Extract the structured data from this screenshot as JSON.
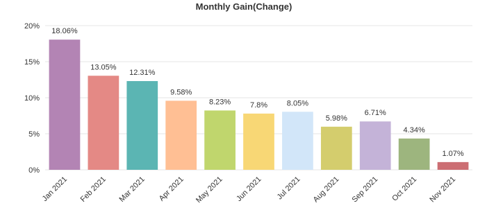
{
  "chart_data": {
    "type": "bar",
    "title": "Monthly Gain(Change)",
    "categories": [
      "Jan 2021",
      "Feb 2021",
      "Mar 2021",
      "Apr 2021",
      "May 2021",
      "Jun 2021",
      "Jul 2021",
      "Aug 2021",
      "Sep 2021",
      "Oct 2021",
      "Nov 2021"
    ],
    "values": [
      18.06,
      13.05,
      12.31,
      9.58,
      8.23,
      7.8,
      8.05,
      5.98,
      6.71,
      4.34,
      1.07
    ],
    "value_labels": [
      "18.06%",
      "13.05%",
      "12.31%",
      "9.58%",
      "8.23%",
      "7.8%",
      "8.05%",
      "5.98%",
      "6.71%",
      "4.34%",
      "1.07%"
    ],
    "colors": [
      "#b384b4",
      "#e48985",
      "#5bb5b3",
      "#ffbf94",
      "#c0d66d",
      "#f8d775",
      "#d2e6f9",
      "#d4cd6d",
      "#c4b3d8",
      "#9db57e",
      "#cc6e73"
    ],
    "ylim": [
      0,
      20
    ],
    "yticks": [
      {
        "value": 0,
        "label": "0%"
      },
      {
        "value": 5,
        "label": "5%"
      },
      {
        "value": 10,
        "label": "10%"
      },
      {
        "value": 15,
        "label": "15%"
      },
      {
        "value": 20,
        "label": "20%"
      }
    ],
    "grid": true
  }
}
